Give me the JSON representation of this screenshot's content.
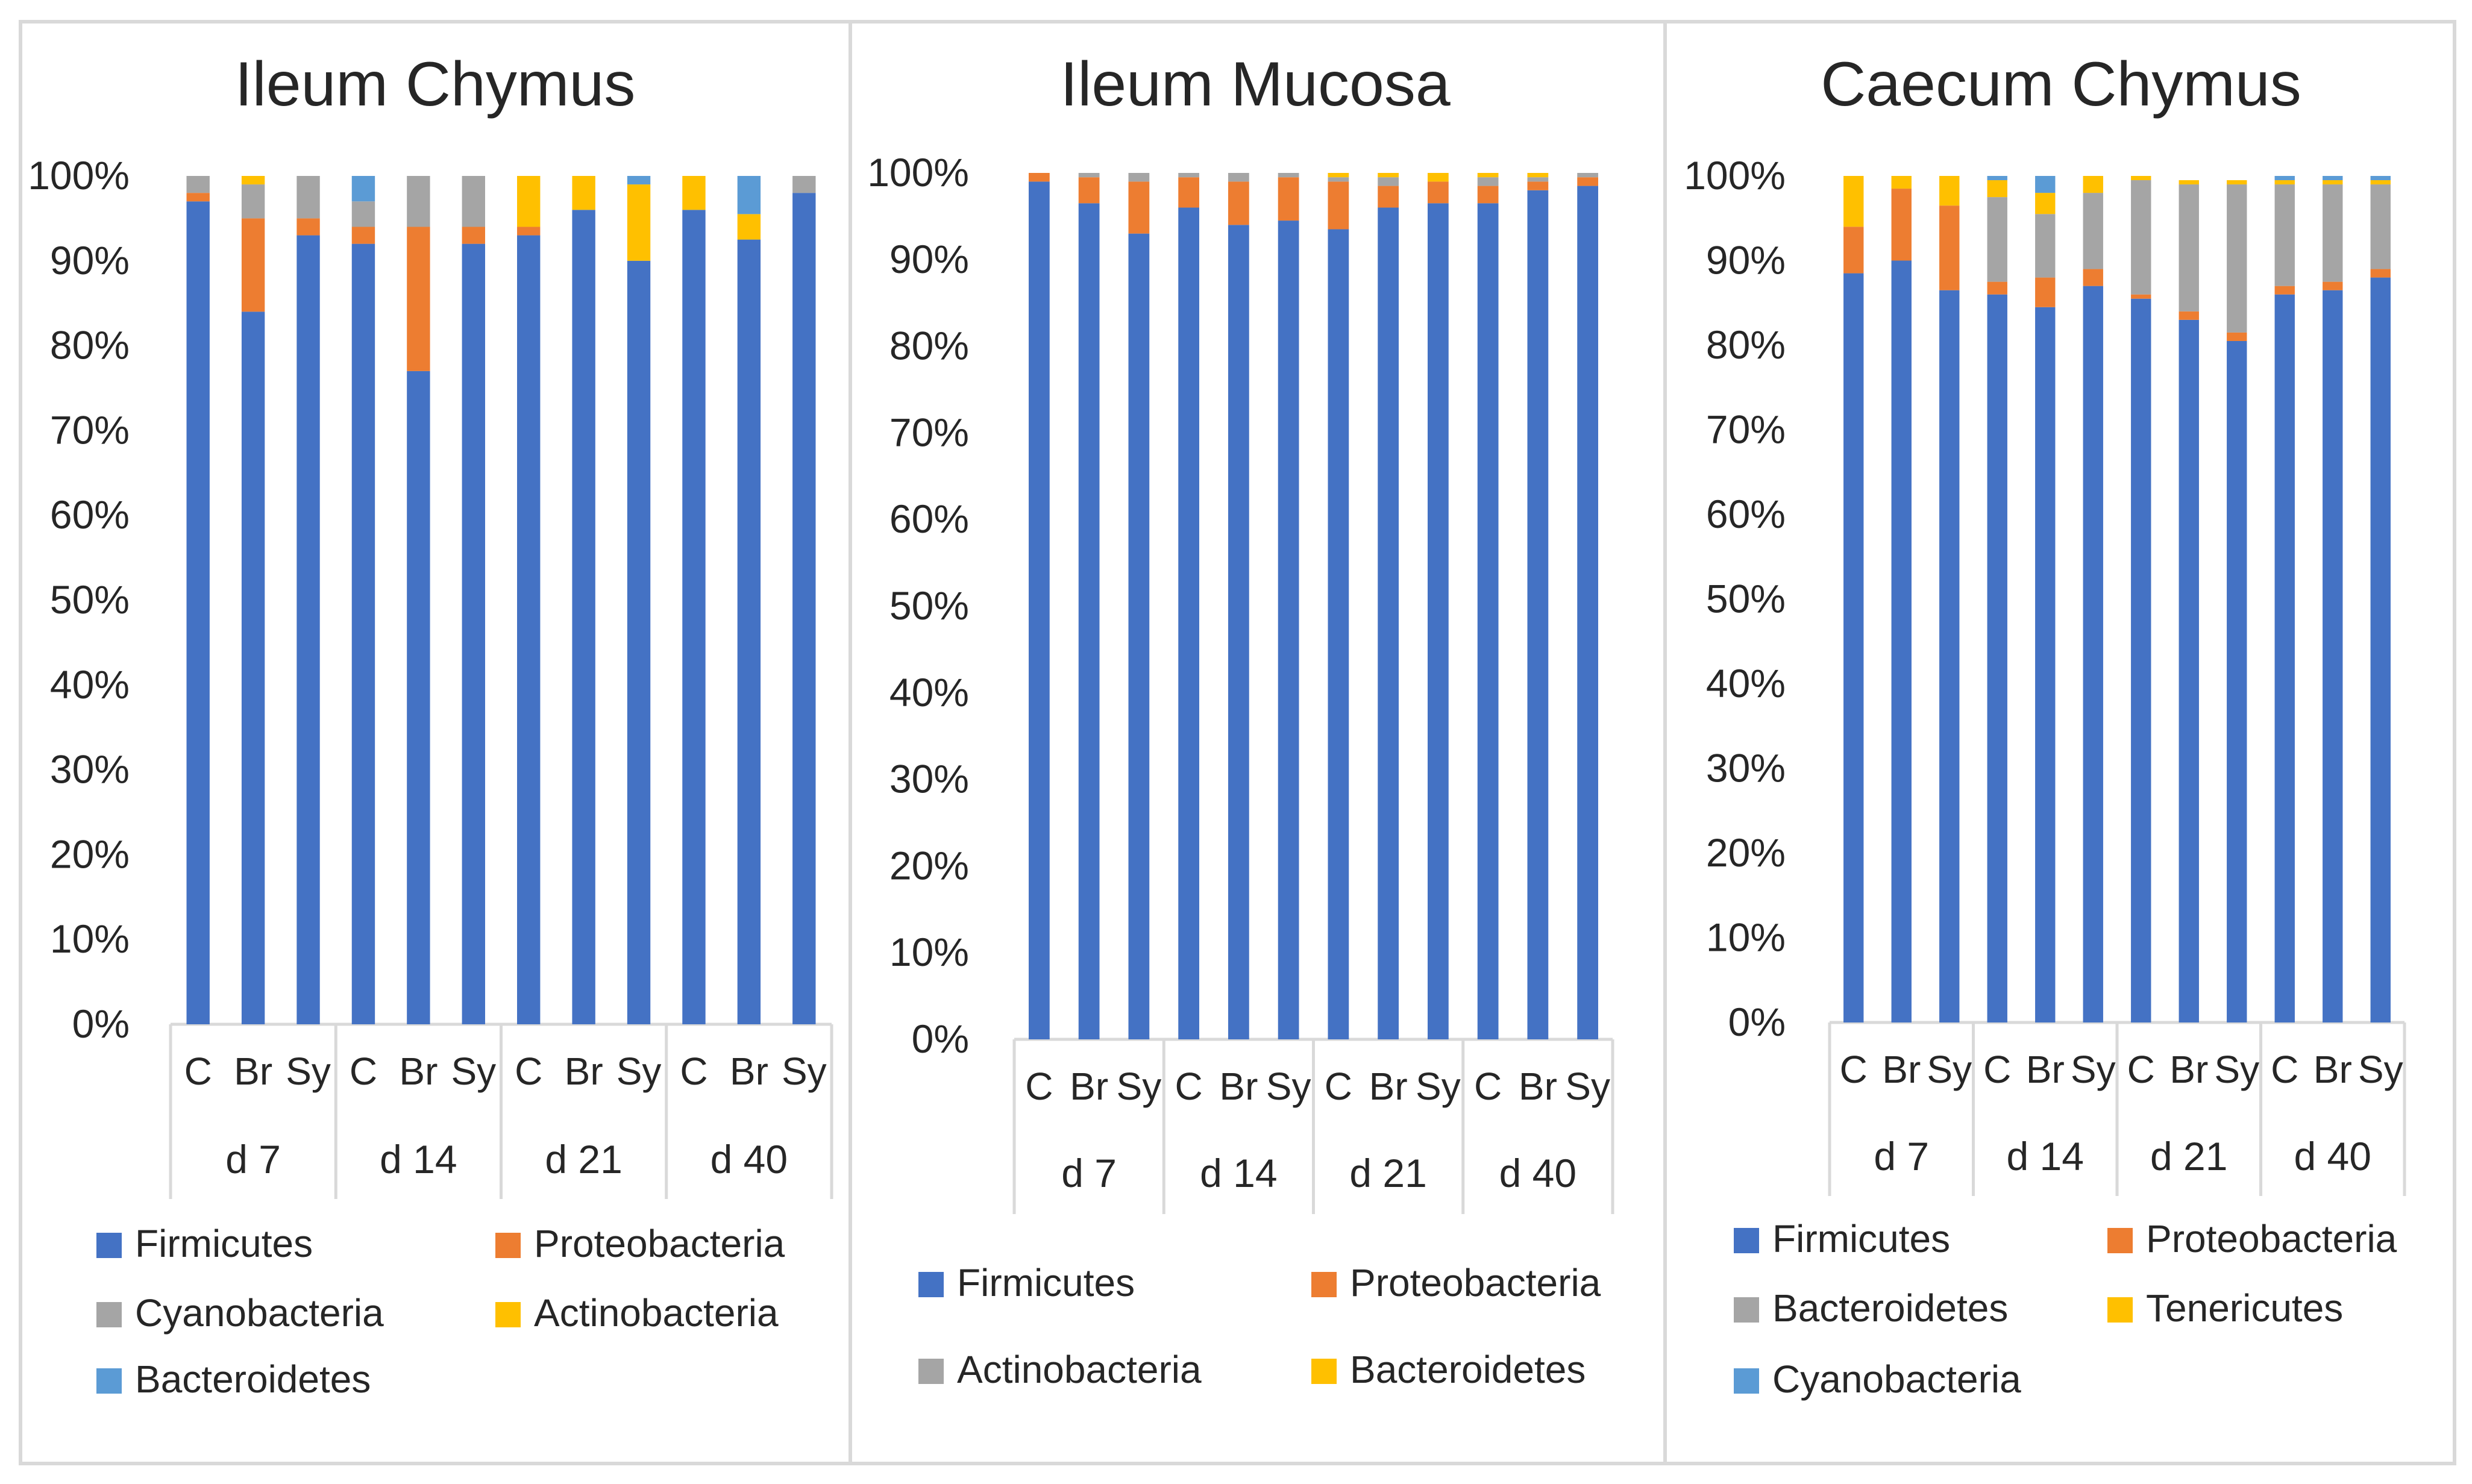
{
  "colors": {
    "Firmicutes": "#4472C4",
    "Proteobacteria": "#ED7D31",
    "Cyanobacteria_ileum": "#A5A5A5",
    "Actinobacteria_ileum": "#FFC000",
    "Bacteroidetes_ileum": "#5B9BD5",
    "grid": "#D9D9D9"
  },
  "chart_data": [
    {
      "type": "bar",
      "stacked": true,
      "title": "Ileum Chymus",
      "ylim": [
        0,
        100
      ],
      "yticks": [
        "0%",
        "10%",
        "20%",
        "30%",
        "40%",
        "50%",
        "60%",
        "70%",
        "80%",
        "90%",
        "100%"
      ],
      "categories": [
        "C",
        "Br",
        "Sy",
        "C",
        "Br",
        "Sy",
        "C",
        "Br",
        "Sy",
        "C",
        "Br",
        "Sy"
      ],
      "groups": [
        "d 7",
        "d 14",
        "d 21",
        "d 40"
      ],
      "series": [
        {
          "name": "Firmicutes",
          "color": "#4472C4",
          "values": [
            97,
            84,
            93,
            92,
            77,
            92,
            93,
            96,
            90,
            96,
            92.5,
            98
          ]
        },
        {
          "name": "Proteobacteria",
          "color": "#ED7D31",
          "values": [
            1,
            11,
            2,
            2,
            17,
            2,
            1,
            0,
            0,
            0,
            0,
            0
          ]
        },
        {
          "name": "Cyanobacteria",
          "color": "#A5A5A5",
          "values": [
            2,
            4,
            5,
            3,
            6,
            6,
            0,
            0,
            0,
            0,
            0,
            2
          ]
        },
        {
          "name": "Actinobacteria",
          "color": "#FFC000",
          "values": [
            0,
            1,
            0,
            0,
            0,
            0,
            6,
            4,
            9,
            4,
            3,
            0
          ]
        },
        {
          "name": "Bacteroidetes",
          "color": "#5B9BD5",
          "values": [
            0,
            0,
            0,
            3,
            0,
            0,
            0,
            0,
            1,
            0,
            4.5,
            0
          ]
        }
      ],
      "legend": [
        "Firmicutes",
        "Proteobacteria",
        "Cyanobacteria",
        "Actinobacteria",
        "Bacteroidetes"
      ]
    },
    {
      "type": "bar",
      "stacked": true,
      "title": "Ileum Mucosa",
      "ylim": [
        0,
        100
      ],
      "yticks": [
        "0%",
        "10%",
        "20%",
        "30%",
        "40%",
        "50%",
        "60%",
        "70%",
        "80%",
        "90%",
        "100%"
      ],
      "categories": [
        "C",
        "Br",
        "Sy",
        "C",
        "Br",
        "Sy",
        "C",
        "Br",
        "Sy",
        "C",
        "Br",
        "Sy"
      ],
      "groups": [
        "d 7",
        "d 14",
        "d 21",
        "d 40"
      ],
      "series": [
        {
          "name": "Firmicutes",
          "color": "#4472C4",
          "values": [
            99,
            96.5,
            93,
            96,
            94,
            94.5,
            93.5,
            96,
            96.5,
            96.5,
            98,
            98.5
          ]
        },
        {
          "name": "Proteobacteria",
          "color": "#ED7D31",
          "values": [
            1,
            3,
            6,
            3.5,
            5,
            5,
            5.5,
            2.5,
            2.5,
            2,
            1,
            1
          ]
        },
        {
          "name": "Actinobacteria",
          "color": "#A5A5A5",
          "values": [
            0,
            0.5,
            1,
            0.5,
            1,
            0.5,
            0.5,
            1,
            0,
            1,
            0.5,
            0.5
          ]
        },
        {
          "name": "Bacteroidetes",
          "color": "#FFC000",
          "values": [
            0,
            0,
            0,
            0,
            0,
            0,
            0.5,
            0.5,
            1,
            0.5,
            0.5,
            0
          ]
        }
      ],
      "legend": [
        "Firmicutes",
        "Proteobacteria",
        "Actinobacteria",
        "Bacteroidetes"
      ]
    },
    {
      "type": "bar",
      "stacked": true,
      "title": "Caecum Chymus",
      "ylim": [
        0,
        100
      ],
      "yticks": [
        "0%",
        "10%",
        "20%",
        "30%",
        "40%",
        "50%",
        "60%",
        "70%",
        "80%",
        "90%",
        "100%"
      ],
      "categories": [
        "C",
        "Br",
        "Sy",
        "C",
        "Br",
        "Sy",
        "C",
        "Br",
        "Sy",
        "C",
        "Br",
        "Sy"
      ],
      "groups": [
        "d 7",
        "d 14",
        "d 21",
        "d 40"
      ],
      "series": [
        {
          "name": "Firmicutes",
          "color": "#4472C4",
          "values": [
            88.5,
            90,
            86.5,
            86,
            84.5,
            87,
            85.5,
            83,
            80.5,
            86,
            86.5,
            88
          ]
        },
        {
          "name": "Proteobacteria",
          "color": "#ED7D31",
          "values": [
            5.5,
            8.5,
            10,
            1.5,
            3.5,
            2,
            0.5,
            1,
            1,
            1,
            1,
            1
          ]
        },
        {
          "name": "Bacteroidetes",
          "color": "#A5A5A5",
          "values": [
            0,
            0,
            0,
            10,
            7.5,
            9,
            13.5,
            15,
            17.5,
            12,
            11.5,
            10
          ]
        },
        {
          "name": "Tenericutes",
          "color": "#FFC000",
          "values": [
            6,
            1.5,
            3.5,
            2,
            2.5,
            2,
            0.5,
            0.5,
            0.5,
            0.5,
            0.5,
            0.5
          ]
        },
        {
          "name": "Cyanobacteria",
          "color": "#5B9BD5",
          "values": [
            0,
            0,
            0,
            0.5,
            2,
            0,
            0,
            0,
            0,
            0.5,
            0.5,
            0.5
          ]
        }
      ],
      "legend": [
        "Firmicutes",
        "Proteobacteria",
        "Bacteroidetes",
        "Tenericutes",
        "Cyanobacteria"
      ]
    }
  ]
}
